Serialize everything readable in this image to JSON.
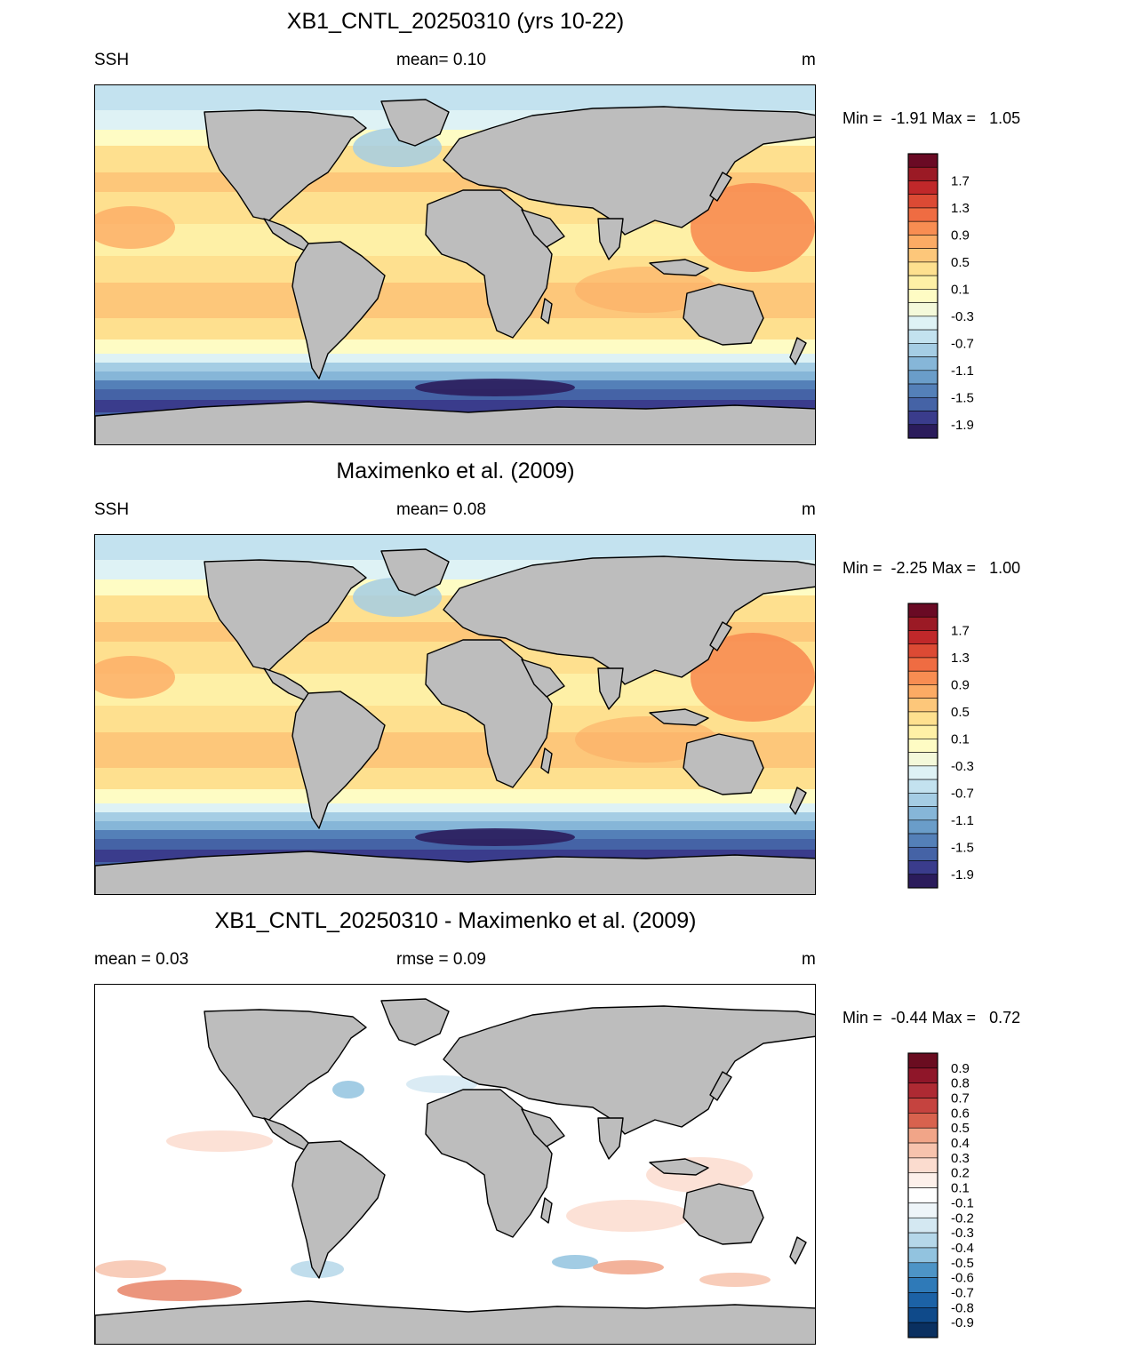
{
  "colors": {
    "land": "#bdbdbd",
    "abs_palette": [
      "#2b1c5c",
      "#3a3c8c",
      "#4563a6",
      "#5480b8",
      "#6a9dc9",
      "#86b6d8",
      "#a5cde4",
      "#c3e2ef",
      "#def2f5",
      "#f4f9da",
      "#fefcc4",
      "#fef0a6",
      "#fee08f",
      "#fdc77a",
      "#fcab64",
      "#f88d52",
      "#ef6c42",
      "#dc4a34",
      "#c0282a",
      "#9b1a25",
      "#6a0a24"
    ],
    "diff_palette": [
      "#0a3060",
      "#0f4a8a",
      "#1c62a6",
      "#2f7ab8",
      "#4d94c6",
      "#6eabd3",
      "#92c3df",
      "#b5d7e9",
      "#d4e8f2",
      "#eef5f9",
      "#ffffff",
      "#fdf0ea",
      "#fbdccf",
      "#f7c3ad",
      "#f1a588",
      "#e78366",
      "#d8624e",
      "#c5433f",
      "#ae2a33",
      "#8f1629",
      "#6a0c20"
    ]
  },
  "panels": [
    {
      "title": "XB1_CNTL_20250310 (yrs 10-22)",
      "left_label": "SSH",
      "mid_label": "mean=   0.10",
      "units": "m",
      "minmax": "Min =  -1.91 Max =   1.05",
      "kind": "abs",
      "colorbar_labels": [
        "1.7",
        "1.3",
        "0.9",
        "0.5",
        "0.1",
        "-0.3",
        "-0.7",
        "-1.1",
        "-1.5",
        "-1.9"
      ]
    },
    {
      "title": "Maximenko et al. (2009)",
      "left_label": "SSH",
      "mid_label": "mean=   0.08",
      "units": "m",
      "minmax": "Min =  -2.25 Max =   1.00",
      "kind": "abs",
      "colorbar_labels": [
        "1.7",
        "1.3",
        "0.9",
        "0.5",
        "0.1",
        "-0.3",
        "-0.7",
        "-1.1",
        "-1.5",
        "-1.9"
      ]
    },
    {
      "title": "XB1_CNTL_20250310 - Maximenko et al. (2009)",
      "left_label": "mean =   0.03",
      "mid_label": "rmse =   0.09",
      "units": "m",
      "minmax": "Min =  -0.44 Max =   0.72",
      "kind": "diff",
      "colorbar_labels": [
        "0.9",
        "0.8",
        "0.7",
        "0.6",
        "0.5",
        "0.4",
        "0.3",
        "0.2",
        "0.1",
        "-0.1",
        "-0.2",
        "-0.3",
        "-0.4",
        "-0.5",
        "-0.6",
        "-0.7",
        "-0.8",
        "-0.9"
      ]
    }
  ],
  "chart_data": [
    {
      "type": "heatmap",
      "title": "XB1_CNTL_20250310 (yrs 10-22)",
      "variable": "SSH",
      "units": "m",
      "mean": 0.1,
      "min": -1.91,
      "max": 1.05,
      "colorbar_ticks": [
        1.7,
        1.3,
        0.9,
        0.5,
        0.1,
        -0.3,
        -0.7,
        -1.1,
        -1.5,
        -1.9
      ]
    },
    {
      "type": "heatmap",
      "title": "Maximenko et al. (2009)",
      "variable": "SSH",
      "units": "m",
      "mean": 0.08,
      "min": -2.25,
      "max": 1.0,
      "colorbar_ticks": [
        1.7,
        1.3,
        0.9,
        0.5,
        0.1,
        -0.3,
        -0.7,
        -1.1,
        -1.5,
        -1.9
      ]
    },
    {
      "type": "heatmap",
      "title": "XB1_CNTL_20250310 - Maximenko et al. (2009)",
      "units": "m",
      "mean": 0.03,
      "rmse": 0.09,
      "min": -0.44,
      "max": 0.72,
      "colorbar_ticks": [
        0.9,
        0.8,
        0.7,
        0.6,
        0.5,
        0.4,
        0.3,
        0.2,
        0.1,
        -0.1,
        -0.2,
        -0.3,
        -0.4,
        -0.5,
        -0.6,
        -0.7,
        -0.8,
        -0.9
      ]
    }
  ]
}
